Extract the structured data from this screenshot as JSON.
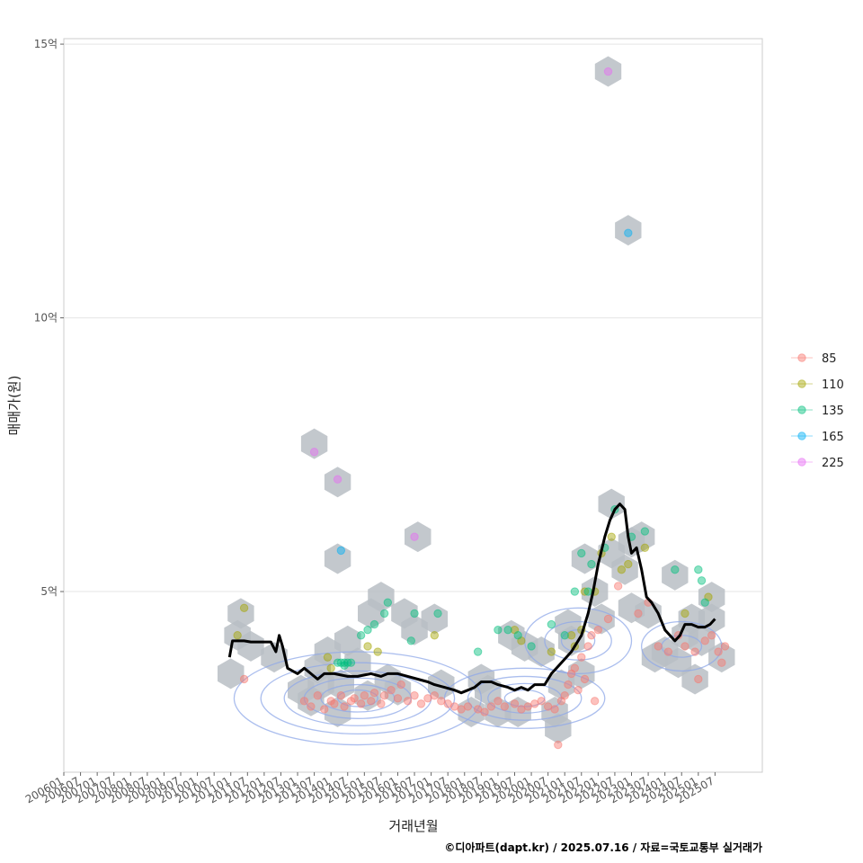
{
  "chart_data": {
    "type": "scatter",
    "xlabel": "거래년월",
    "ylabel": "매매가(원)",
    "caption": "©디아파트(dapt.kr) / 2025.07.16 / 자료=국토교통부 실거래가",
    "xlim": [
      "2006-01",
      "2026-12"
    ],
    "ylim": [
      1.7,
      15.1
    ],
    "y_unit": "억",
    "y_ticks": [
      {
        "value": 5,
        "label": "5억"
      },
      {
        "value": 10,
        "label": "10억"
      },
      {
        "value": 15,
        "label": "15억"
      }
    ],
    "x_ticks": [
      "200601",
      "200607",
      "200701",
      "200707",
      "200801",
      "200807",
      "200901",
      "200907",
      "201001",
      "201007",
      "201101",
      "201107",
      "201201",
      "201207",
      "201301",
      "201307",
      "201401",
      "201407",
      "201501",
      "201507",
      "201601",
      "201607",
      "201701",
      "201707",
      "201801",
      "201807",
      "201901",
      "201907",
      "202001",
      "202007",
      "202101",
      "202107",
      "202201",
      "202207",
      "202301",
      "202307",
      "202401",
      "202407",
      "202501",
      "202507"
    ],
    "grid": true,
    "legend_position": "right",
    "legend": [
      {
        "name": "85",
        "color": "#F8766D"
      },
      {
        "name": "110",
        "color": "#A3A500"
      },
      {
        "name": "135",
        "color": "#00BF7D"
      },
      {
        "name": "165",
        "color": "#00B0F6"
      },
      {
        "name": "225",
        "color": "#E76BF3"
      }
    ],
    "hexbins": [
      [
        2011.0,
        3.5
      ],
      [
        2011.2,
        4.2
      ],
      [
        2011.3,
        4.6
      ],
      [
        2011.6,
        4.0
      ],
      [
        2012.3,
        3.8
      ],
      [
        2013.1,
        3.2
      ],
      [
        2013.4,
        3.0
      ],
      [
        2013.6,
        3.6
      ],
      [
        2013.9,
        3.9
      ],
      [
        2013.7,
        3.3
      ],
      [
        2013.5,
        7.7
      ],
      [
        2014.2,
        7.0
      ],
      [
        2014.2,
        5.6
      ],
      [
        2014.5,
        4.1
      ],
      [
        2014.8,
        3.7
      ],
      [
        2014.2,
        2.8
      ],
      [
        2014.3,
        3.3
      ],
      [
        2015.2,
        4.6
      ],
      [
        2015.5,
        4.9
      ],
      [
        2015.1,
        3.1
      ],
      [
        2015.7,
        3.4
      ],
      [
        2016.2,
        4.6
      ],
      [
        2016.5,
        4.3
      ],
      [
        2016.6,
        6.0
      ],
      [
        2016.0,
        3.2
      ],
      [
        2017.1,
        4.5
      ],
      [
        2017.3,
        3.3
      ],
      [
        2018.2,
        2.8
      ],
      [
        2018.5,
        3.4
      ],
      [
        2018.7,
        3.2
      ],
      [
        2019.0,
        2.8
      ],
      [
        2019.4,
        4.2
      ],
      [
        2019.8,
        4.0
      ],
      [
        2019.6,
        2.8
      ],
      [
        2020.3,
        3.9
      ],
      [
        2020.7,
        2.8
      ],
      [
        2020.8,
        2.5
      ],
      [
        2020.9,
        3.3
      ],
      [
        2021.1,
        4.4
      ],
      [
        2021.2,
        4.1
      ],
      [
        2021.5,
        3.5
      ],
      [
        2021.6,
        5.6
      ],
      [
        2021.9,
        5.0
      ],
      [
        2022.1,
        4.5
      ],
      [
        2022.3,
        14.5
      ],
      [
        2022.4,
        6.6
      ],
      [
        2022.4,
        5.7
      ],
      [
        2022.8,
        5.4
      ],
      [
        2022.9,
        11.6
      ],
      [
        2023.0,
        5.9
      ],
      [
        2023.0,
        4.7
      ],
      [
        2023.3,
        6.0
      ],
      [
        2023.5,
        4.6
      ],
      [
        2023.7,
        3.8
      ],
      [
        2024.0,
        3.9
      ],
      [
        2024.3,
        5.3
      ],
      [
        2024.4,
        3.7
      ],
      [
        2024.6,
        4.2
      ],
      [
        2024.8,
        4.5
      ],
      [
        2024.9,
        3.4
      ],
      [
        2025.1,
        4.1
      ],
      [
        2025.4,
        4.9
      ],
      [
        2025.4,
        4.5
      ],
      [
        2025.7,
        3.8
      ]
    ],
    "density_contours": [
      {
        "cx": 2014.8,
        "cy": 3.05,
        "rx": [
          0.6,
          1.1,
          1.6,
          2.2,
          2.9,
          3.7
        ],
        "ry": [
          0.15,
          0.25,
          0.37,
          0.5,
          0.65,
          0.85
        ]
      },
      {
        "cx": 2019.8,
        "cy": 3.05,
        "rx": [
          0.6,
          1.1,
          1.7,
          2.4
        ],
        "ry": [
          0.15,
          0.27,
          0.4,
          0.55
        ]
      },
      {
        "cx": 2021.4,
        "cy": 4.1,
        "rx": [
          0.5,
          1.0,
          1.6
        ],
        "ry": [
          0.2,
          0.35,
          0.6
        ]
      },
      {
        "cx": 2024.5,
        "cy": 4.0,
        "rx": [
          0.6,
          1.2
        ],
        "ry": [
          0.2,
          0.45
        ]
      }
    ],
    "series": [
      {
        "name": "85",
        "points": [
          [
            2011.4,
            3.4
          ],
          [
            2013.2,
            3.0
          ],
          [
            2013.4,
            2.9
          ],
          [
            2013.6,
            3.1
          ],
          [
            2013.8,
            2.85
          ],
          [
            2014.0,
            3.0
          ],
          [
            2014.1,
            2.95
          ],
          [
            2014.3,
            3.1
          ],
          [
            2014.4,
            2.9
          ],
          [
            2014.6,
            3.0
          ],
          [
            2014.7,
            3.05
          ],
          [
            2014.9,
            2.95
          ],
          [
            2015.0,
            3.1
          ],
          [
            2015.2,
            3.0
          ],
          [
            2015.3,
            3.15
          ],
          [
            2015.5,
            2.95
          ],
          [
            2015.6,
            3.1
          ],
          [
            2015.8,
            3.2
          ],
          [
            2016.0,
            3.05
          ],
          [
            2016.1,
            3.3
          ],
          [
            2016.3,
            3.0
          ],
          [
            2016.5,
            3.1
          ],
          [
            2016.7,
            2.95
          ],
          [
            2016.9,
            3.05
          ],
          [
            2017.1,
            3.1
          ],
          [
            2017.3,
            3.0
          ],
          [
            2017.5,
            2.95
          ],
          [
            2017.7,
            2.9
          ],
          [
            2017.9,
            2.85
          ],
          [
            2018.1,
            2.9
          ],
          [
            2018.4,
            2.85
          ],
          [
            2018.6,
            2.8
          ],
          [
            2018.8,
            2.9
          ],
          [
            2019.0,
            3.0
          ],
          [
            2019.2,
            2.9
          ],
          [
            2019.5,
            2.95
          ],
          [
            2019.7,
            2.85
          ],
          [
            2019.9,
            2.9
          ],
          [
            2020.1,
            2.95
          ],
          [
            2020.3,
            3.0
          ],
          [
            2020.5,
            2.9
          ],
          [
            2020.7,
            2.85
          ],
          [
            2020.9,
            3.0
          ],
          [
            2021.0,
            3.1
          ],
          [
            2021.1,
            3.3
          ],
          [
            2021.2,
            3.5
          ],
          [
            2021.3,
            3.6
          ],
          [
            2021.4,
            3.2
          ],
          [
            2021.5,
            3.8
          ],
          [
            2021.6,
            3.4
          ],
          [
            2020.8,
            2.2
          ],
          [
            2021.7,
            4.0
          ],
          [
            2021.8,
            4.2
          ],
          [
            2022.0,
            4.3
          ],
          [
            2022.3,
            4.5
          ],
          [
            2022.6,
            5.1
          ],
          [
            2023.2,
            4.6
          ],
          [
            2023.5,
            4.8
          ],
          [
            2023.8,
            4.0
          ],
          [
            2024.1,
            3.9
          ],
          [
            2024.4,
            4.2
          ],
          [
            2024.6,
            4.0
          ],
          [
            2024.9,
            3.9
          ],
          [
            2025.0,
            3.4
          ],
          [
            2025.2,
            4.1
          ],
          [
            2025.4,
            4.2
          ],
          [
            2025.6,
            3.9
          ],
          [
            2025.7,
            3.7
          ],
          [
            2025.8,
            4.0
          ],
          [
            2021.9,
            3.0
          ]
        ]
      },
      {
        "name": "110",
        "points": [
          [
            2011.2,
            4.2
          ],
          [
            2011.4,
            4.7
          ],
          [
            2013.9,
            3.8
          ],
          [
            2014.0,
            3.6
          ],
          [
            2015.1,
            4.0
          ],
          [
            2015.4,
            3.9
          ],
          [
            2017.1,
            4.2
          ],
          [
            2019.5,
            4.3
          ],
          [
            2019.7,
            4.1
          ],
          [
            2020.6,
            3.9
          ],
          [
            2021.2,
            4.2
          ],
          [
            2021.5,
            4.3
          ],
          [
            2021.6,
            5.0
          ],
          [
            2021.9,
            5.0
          ],
          [
            2022.1,
            5.7
          ],
          [
            2022.4,
            6.0
          ],
          [
            2022.7,
            5.4
          ],
          [
            2022.9,
            5.5
          ],
          [
            2023.4,
            5.8
          ],
          [
            2024.6,
            4.6
          ],
          [
            2025.3,
            4.9
          ],
          [
            2021.3,
            4.0
          ]
        ]
      },
      {
        "name": "135",
        "points": [
          [
            2014.2,
            3.7
          ],
          [
            2014.3,
            3.7
          ],
          [
            2014.4,
            3.7
          ],
          [
            2014.5,
            3.7
          ],
          [
            2014.6,
            3.7
          ],
          [
            2014.4,
            3.65
          ],
          [
            2014.9,
            4.2
          ],
          [
            2015.1,
            4.3
          ],
          [
            2015.3,
            4.4
          ],
          [
            2015.6,
            4.6
          ],
          [
            2015.7,
            4.8
          ],
          [
            2016.4,
            4.1
          ],
          [
            2016.5,
            4.6
          ],
          [
            2017.2,
            4.6
          ],
          [
            2018.4,
            3.9
          ],
          [
            2019.0,
            4.3
          ],
          [
            2019.3,
            4.3
          ],
          [
            2019.6,
            4.2
          ],
          [
            2020.0,
            4.0
          ],
          [
            2020.6,
            4.4
          ],
          [
            2021.0,
            4.2
          ],
          [
            2021.3,
            5.0
          ],
          [
            2021.5,
            5.7
          ],
          [
            2021.7,
            5.0
          ],
          [
            2021.8,
            5.5
          ],
          [
            2022.2,
            5.8
          ],
          [
            2022.5,
            6.5
          ],
          [
            2023.0,
            6.0
          ],
          [
            2023.4,
            6.1
          ],
          [
            2024.3,
            5.4
          ],
          [
            2025.0,
            5.4
          ],
          [
            2025.1,
            5.2
          ],
          [
            2025.2,
            4.8
          ]
        ]
      },
      {
        "name": "165",
        "points": [
          [
            2014.3,
            5.75
          ],
          [
            2022.9,
            11.55
          ]
        ]
      },
      {
        "name": "225",
        "points": [
          [
            2013.5,
            7.55
          ],
          [
            2014.2,
            7.05
          ],
          [
            2016.5,
            6.0
          ],
          [
            2022.3,
            14.5
          ]
        ]
      }
    ],
    "trend_line": [
      [
        2010.96,
        3.8
      ],
      [
        2011.05,
        4.1
      ],
      [
        2011.4,
        4.1
      ],
      [
        2011.6,
        4.08
      ],
      [
        2012.2,
        4.08
      ],
      [
        2012.35,
        3.9
      ],
      [
        2012.45,
        4.2
      ],
      [
        2012.55,
        4.0
      ],
      [
        2012.7,
        3.6
      ],
      [
        2013.0,
        3.5
      ],
      [
        2013.2,
        3.6
      ],
      [
        2013.4,
        3.5
      ],
      [
        2013.6,
        3.4
      ],
      [
        2013.8,
        3.5
      ],
      [
        2014.1,
        3.5
      ],
      [
        2014.5,
        3.45
      ],
      [
        2014.8,
        3.45
      ],
      [
        2015.2,
        3.5
      ],
      [
        2015.5,
        3.45
      ],
      [
        2015.7,
        3.5
      ],
      [
        2016.0,
        3.5
      ],
      [
        2016.3,
        3.45
      ],
      [
        2016.6,
        3.4
      ],
      [
        2016.9,
        3.35
      ],
      [
        2017.1,
        3.3
      ],
      [
        2017.4,
        3.25
      ],
      [
        2017.7,
        3.2
      ],
      [
        2017.9,
        3.15
      ],
      [
        2018.1,
        3.2
      ],
      [
        2018.3,
        3.25
      ],
      [
        2018.5,
        3.35
      ],
      [
        2018.8,
        3.35
      ],
      [
        2019.0,
        3.3
      ],
      [
        2019.3,
        3.25
      ],
      [
        2019.5,
        3.2
      ],
      [
        2019.7,
        3.25
      ],
      [
        2019.9,
        3.2
      ],
      [
        2020.1,
        3.3
      ],
      [
        2020.4,
        3.3
      ],
      [
        2020.6,
        3.5
      ],
      [
        2020.9,
        3.7
      ],
      [
        2021.2,
        3.9
      ],
      [
        2021.5,
        4.2
      ],
      [
        2021.7,
        4.6
      ],
      [
        2021.85,
        5.0
      ],
      [
        2022.0,
        5.5
      ],
      [
        2022.2,
        6.0
      ],
      [
        2022.35,
        6.3
      ],
      [
        2022.5,
        6.5
      ],
      [
        2022.65,
        6.6
      ],
      [
        2022.8,
        6.5
      ],
      [
        2022.9,
        6.0
      ],
      [
        2023.0,
        5.7
      ],
      [
        2023.15,
        5.8
      ],
      [
        2023.3,
        5.4
      ],
      [
        2023.45,
        4.9
      ],
      [
        2023.6,
        4.8
      ],
      [
        2023.8,
        4.6
      ],
      [
        2024.0,
        4.3
      ],
      [
        2024.15,
        4.2
      ],
      [
        2024.3,
        4.1
      ],
      [
        2024.45,
        4.2
      ],
      [
        2024.6,
        4.4
      ],
      [
        2024.8,
        4.4
      ],
      [
        2025.0,
        4.35
      ],
      [
        2025.2,
        4.35
      ],
      [
        2025.35,
        4.4
      ],
      [
        2025.5,
        4.5
      ]
    ]
  }
}
